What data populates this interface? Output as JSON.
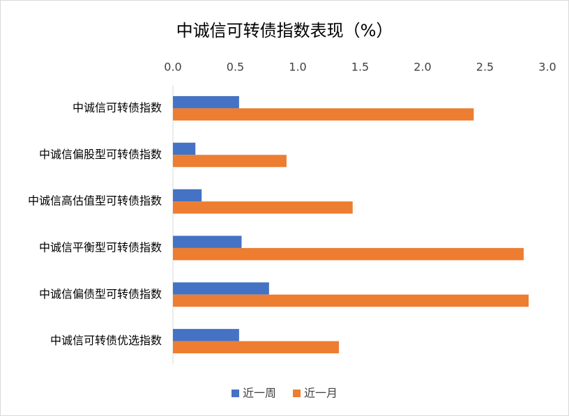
{
  "chart_data": {
    "type": "hbar",
    "title": "中诚信可转债指数表现（%）",
    "categories": [
      "中诚信可转债指数",
      "中诚信偏股型可转债指数",
      "中诚信高估值型可转债指数",
      "中诚信平衡型可转债指数",
      "中诚信偏债型可转债指数",
      "中诚信可转债优选指数"
    ],
    "series": [
      {
        "name": "近一周",
        "color": "#4472c4",
        "values": [
          0.53,
          0.18,
          0.23,
          0.55,
          0.77,
          0.53
        ]
      },
      {
        "name": "近一月",
        "color": "#ed7d31",
        "values": [
          2.41,
          0.91,
          1.44,
          2.81,
          2.85,
          1.33
        ]
      }
    ],
    "xlim": [
      0,
      3
    ],
    "xticks": [
      {
        "value": 0,
        "label": "0.0"
      },
      {
        "value": 0.5,
        "label": "0.5"
      },
      {
        "value": 1,
        "label": "1.0"
      },
      {
        "value": 1.5,
        "label": "1.5"
      },
      {
        "value": 2,
        "label": "2.0"
      },
      {
        "value": 2.5,
        "label": "2.5"
      },
      {
        "value": 3,
        "label": "3.0"
      }
    ],
    "legend": "bottom"
  }
}
